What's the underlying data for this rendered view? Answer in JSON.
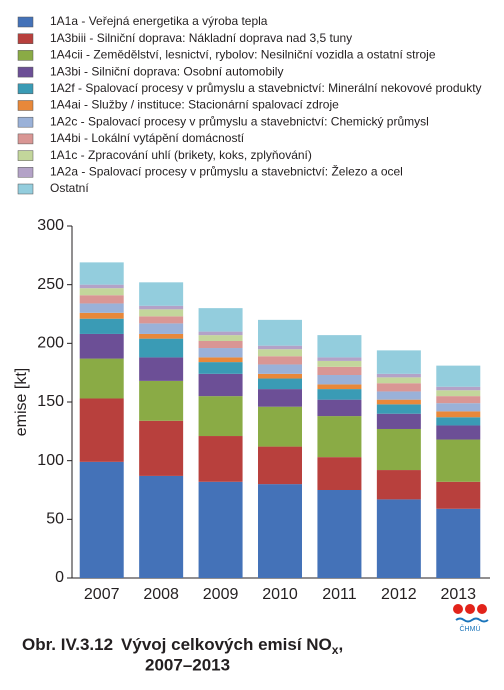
{
  "chart_data": {
    "type": "stacked_bar",
    "figure_number": "Obr. IV.3.12",
    "title": "Vývoj celkových emisí NO",
    "title_subscript": "x",
    "title_suffix": ",",
    "subtitle": "2007–2013",
    "y_label": "emise [kt]",
    "logo_text": "ČHMÚ",
    "categories": [
      "2007",
      "2008",
      "2009",
      "2010",
      "2011",
      "2012",
      "2013"
    ],
    "ylim": [
      0,
      300
    ],
    "yticks": [
      0,
      50,
      100,
      150,
      200,
      250,
      300
    ],
    "grid": false,
    "series": [
      {
        "name": "1A1a - Veřejná energetika a výroba tepla",
        "color": "#4472b8",
        "values": [
          99,
          87,
          82,
          80,
          75,
          67,
          59
        ]
      },
      {
        "name": "1A3biii - Silniční doprava: Nákladní doprava nad 3,5 tuny",
        "color": "#b8403d",
        "values": [
          54,
          47,
          39,
          32,
          28,
          25,
          23
        ]
      },
      {
        "name": "1A4cii - Zemědělství, lesnictví, rybolov: Nesilniční vozidla a ostatní stroje",
        "color": "#8aab45",
        "values": [
          34,
          34,
          34,
          34,
          35,
          35,
          36
        ]
      },
      {
        "name": "1A3bi - Silniční doprava: Osobní automobily",
        "color": "#6c4f96",
        "values": [
          21,
          20,
          19,
          15,
          14,
          13,
          12
        ]
      },
      {
        "name": "1A2f - Spalovací procesy v průmyslu a stavebnictví: Minerální nekovové produkty",
        "color": "#3a9bb5",
        "values": [
          13,
          16,
          10,
          9,
          9,
          8,
          7
        ]
      },
      {
        "name": "1A4ai - Služby / instituce: Stacionární spalovací zdroje",
        "color": "#e8883a",
        "values": [
          5,
          4,
          4,
          4,
          4,
          4,
          5
        ]
      },
      {
        "name": "1A2c - Spalovací procesy v průmyslu a stavebnictví: Chemický průmysl",
        "color": "#9ab1d8",
        "values": [
          8,
          9,
          8,
          8,
          8,
          7,
          7
        ]
      },
      {
        "name": "1A4bi - Lokální vytápění domácností",
        "color": "#d99694",
        "values": [
          7,
          6,
          6,
          7,
          7,
          7,
          6
        ]
      },
      {
        "name": "1A1c - Zpracování uhlí (brikety, koks, zplyňování)",
        "color": "#c3d69b",
        "values": [
          6,
          6,
          5,
          6,
          5,
          5,
          5
        ]
      },
      {
        "name": "1A2a - Spalovací procesy v průmyslu a stavebnictví: Železo a ocel",
        "color": "#b3a2c7",
        "values": [
          3,
          3,
          3,
          3,
          3,
          3,
          3
        ]
      },
      {
        "name": "Ostatní",
        "color": "#93cddd",
        "values": [
          19,
          20,
          20,
          22,
          19,
          20,
          18
        ]
      }
    ]
  }
}
